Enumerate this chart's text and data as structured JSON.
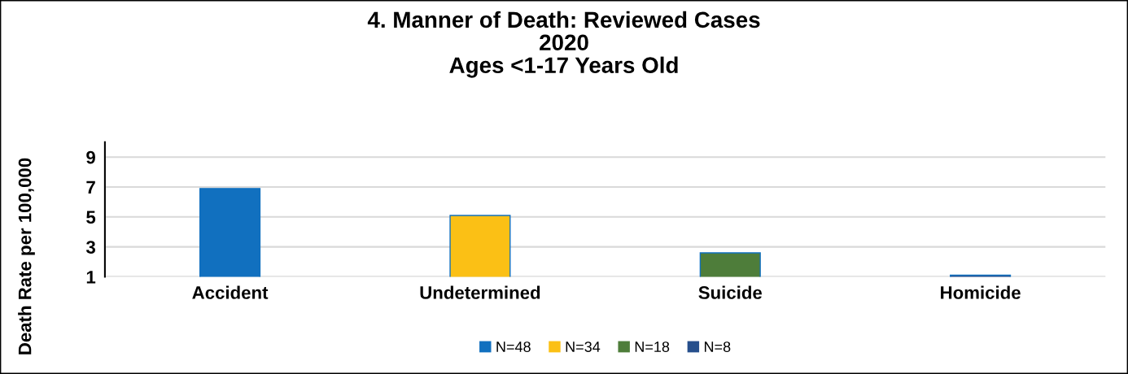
{
  "chart_data": {
    "type": "bar",
    "title": "4. Manner of Death: Reviewed Cases\n2020\nAges <1-17 Years Old",
    "ylabel": "Death Rate per 100,000",
    "categories": [
      "Accident",
      "Undetermined",
      "Suicide",
      "Homicide"
    ],
    "stacked": true,
    "series": [
      {
        "name": "N=48",
        "color": "#1170bf",
        "values": [
          6.9,
          null,
          null,
          null
        ]
      },
      {
        "name": "N=34",
        "color": "#fbc015",
        "values": [
          null,
          5.1,
          null,
          null
        ]
      },
      {
        "name": "N=18",
        "color": "#4e7d3a",
        "values": [
          null,
          null,
          2.6,
          null
        ]
      },
      {
        "name": "N=8",
        "color": "#264f8c",
        "values": [
          null,
          null,
          null,
          1.1
        ]
      }
    ],
    "ylim": [
      1,
      10
    ],
    "yticks": [
      1,
      3,
      5,
      7,
      9
    ],
    "grid": "y",
    "legend": "bottom"
  }
}
